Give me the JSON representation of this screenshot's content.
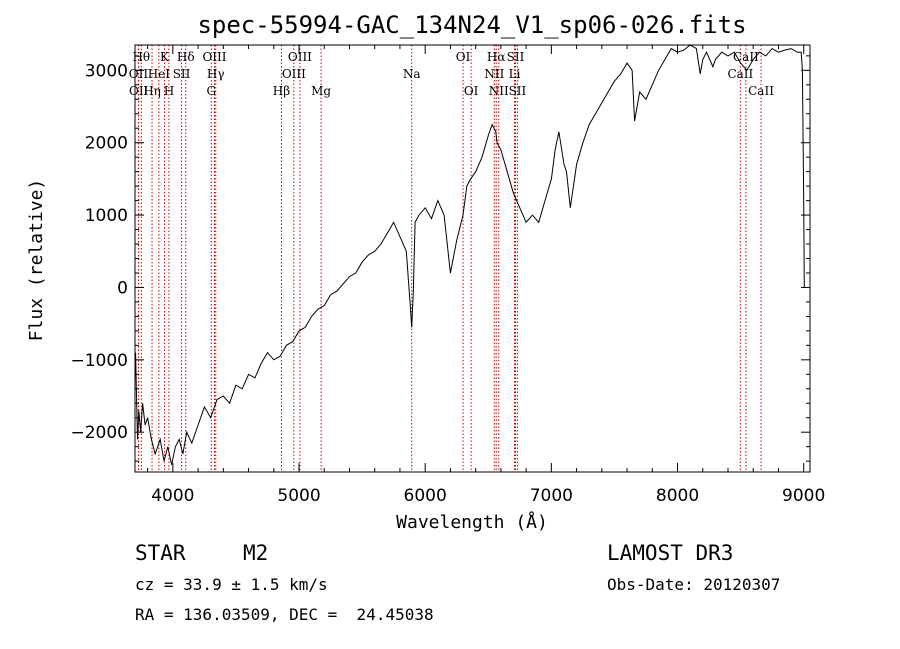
{
  "chart_data": {
    "type": "line",
    "title": "spec-55994-GAC_134N24_V1_sp06-026.fits",
    "xlabel": "Wavelength (Å)",
    "ylabel": "Flux (relative)",
    "xlim": [
      3700,
      9050
    ],
    "ylim": [
      -2550,
      3350
    ],
    "x_ticks": [
      4000,
      5000,
      6000,
      7000,
      8000,
      9000
    ],
    "x_tick_labels": [
      "4000",
      "5000",
      "6000",
      "7000",
      "8000",
      "9000"
    ],
    "y_ticks": [
      -2000,
      -1000,
      0,
      1000,
      2000,
      3000
    ],
    "y_tick_labels": [
      "−2000",
      "−1000",
      "0",
      "1000",
      "2000",
      "3000"
    ],
    "series": [
      {
        "name": "spectrum",
        "x": [
          3705,
          3712,
          3720,
          3730,
          3745,
          3760,
          3780,
          3800,
          3830,
          3860,
          3900,
          3930,
          3960,
          3990,
          4020,
          4050,
          4080,
          4110,
          4150,
          4200,
          4250,
          4300,
          4350,
          4400,
          4450,
          4500,
          4550,
          4600,
          4650,
          4700,
          4750,
          4800,
          4850,
          4900,
          4950,
          5000,
          5050,
          5100,
          5150,
          5200,
          5250,
          5300,
          5350,
          5400,
          5450,
          5500,
          5550,
          5600,
          5650,
          5700,
          5750,
          5800,
          5850,
          5880,
          5893,
          5905,
          5920,
          5950,
          6000,
          6050,
          6100,
          6150,
          6200,
          6250,
          6300,
          6330,
          6360,
          6400,
          6450,
          6500,
          6530,
          6560,
          6570,
          6600,
          6650,
          6700,
          6750,
          6800,
          6850,
          6900,
          6950,
          7000,
          7030,
          7060,
          7100,
          7120,
          7150,
          7200,
          7250,
          7300,
          7350,
          7400,
          7450,
          7500,
          7550,
          7600,
          7640,
          7660,
          7680,
          7700,
          7750,
          7800,
          7850,
          7900,
          7950,
          8000,
          8050,
          8100,
          8150,
          8180,
          8200,
          8230,
          8280,
          8300,
          8350,
          8400,
          8450,
          8500,
          8550,
          8600,
          8650,
          8700,
          8750,
          8800,
          8850,
          8900,
          8950,
          8980,
          8990,
          9000,
          9005
        ],
        "y": [
          -900,
          -1500,
          -2100,
          -1700,
          -2000,
          -1600,
          -1900,
          -1800,
          -2100,
          -2300,
          -2100,
          -2400,
          -2200,
          -2450,
          -2200,
          -2100,
          -2300,
          -2000,
          -2150,
          -1900,
          -1650,
          -1800,
          -1550,
          -1500,
          -1600,
          -1350,
          -1400,
          -1200,
          -1250,
          -1050,
          -900,
          -1000,
          -950,
          -800,
          -750,
          -600,
          -550,
          -400,
          -300,
          -250,
          -100,
          -50,
          50,
          150,
          200,
          350,
          450,
          500,
          600,
          750,
          900,
          700,
          500,
          -200,
          -550,
          -100,
          900,
          1000,
          1100,
          950,
          1200,
          1000,
          200,
          650,
          1000,
          1400,
          1500,
          1600,
          1800,
          2100,
          2250,
          2150,
          2000,
          1900,
          1600,
          1300,
          1100,
          900,
          1000,
          900,
          1200,
          1500,
          1900,
          2150,
          1700,
          1600,
          1100,
          1700,
          2000,
          2250,
          2400,
          2550,
          2700,
          2850,
          2950,
          3100,
          3000,
          2300,
          2500,
          2700,
          2600,
          2800,
          3000,
          3150,
          3300,
          3250,
          3280,
          3350,
          3300,
          2950,
          3150,
          3250,
          3050,
          3150,
          3250,
          3200,
          3250,
          3100,
          3000,
          3150,
          3250,
          3200,
          3300,
          3250,
          3280,
          3300,
          3250,
          3250,
          3000,
          1200,
          0
        ]
      }
    ],
    "lines": [
      {
        "label": "Hθ",
        "x": 3750,
        "row": 1
      },
      {
        "label": "OII",
        "x": 3727,
        "row": 2
      },
      {
        "label": "OII",
        "x": 3729,
        "row": 3
      },
      {
        "label": "Hη",
        "x": 3835,
        "row": 3
      },
      {
        "label": "HeI",
        "x": 3889,
        "row": 2
      },
      {
        "label": "K",
        "x": 3934,
        "row": 1
      },
      {
        "label": "H",
        "x": 3969,
        "row": 3
      },
      {
        "label": "SII",
        "x": 4069,
        "row": 2
      },
      {
        "label": "Hδ",
        "x": 4102,
        "row": 1
      },
      {
        "label": "OIII",
        "x": 4330,
        "row": 1
      },
      {
        "label": "Hγ",
        "x": 4340,
        "row": 2
      },
      {
        "label": "G",
        "x": 4305,
        "row": 3
      },
      {
        "label": "Hβ",
        "x": 4861,
        "row": 3
      },
      {
        "label": "OIII",
        "x": 5007,
        "row": 1
      },
      {
        "label": "OIII",
        "x": 4959,
        "row": 2
      },
      {
        "label": "Mg",
        "x": 5175,
        "row": 3
      },
      {
        "label": "Na",
        "x": 5893,
        "row": 2
      },
      {
        "label": "OI",
        "x": 6300,
        "row": 1
      },
      {
        "label": "OI",
        "x": 6364,
        "row": 3
      },
      {
        "label": "Hα",
        "x": 6563,
        "row": 1
      },
      {
        "label": "SII",
        "x": 6716,
        "row": 1
      },
      {
        "label": "NII",
        "x": 6548,
        "row": 2
      },
      {
        "label": "Li",
        "x": 6708,
        "row": 2
      },
      {
        "label": "NII",
        "x": 6583,
        "row": 3
      },
      {
        "label": "SII",
        "x": 6731,
        "row": 3
      },
      {
        "label": "CaII",
        "x": 8542,
        "row": 1
      },
      {
        "label": "CaII",
        "x": 8498,
        "row": 2
      },
      {
        "label": "CaII",
        "x": 8662,
        "row": 3
      }
    ]
  },
  "info": {
    "class": "STAR",
    "subclass": "M2",
    "survey": "LAMOST DR3",
    "cz": "cz = 33.9 ± 1.5 km/s",
    "obs_date": "Obs-Date: 20120307",
    "coords": "RA = 136.03509, DEC =  24.45038"
  },
  "colors": {
    "line_marker": "#cc0000",
    "spectrum": "#000000",
    "axes": "#000000"
  }
}
